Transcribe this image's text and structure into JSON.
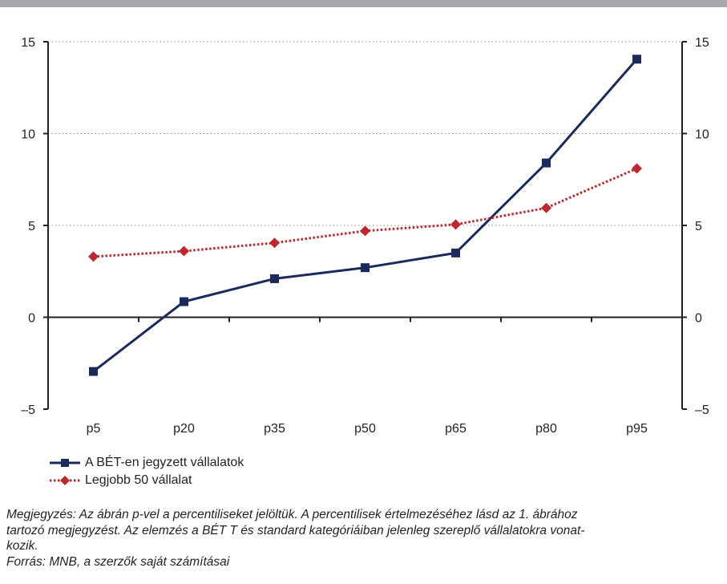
{
  "colors": {
    "series_1": "#1b2a5c",
    "series_2": "#c0272d",
    "top_bar": "#a7a9ac"
  },
  "chart_data": {
    "type": "line",
    "categories": [
      "p5",
      "p20",
      "p35",
      "p50",
      "p65",
      "p80",
      "p95"
    ],
    "ylim": [
      -5,
      15
    ],
    "yticks": [
      -5,
      0,
      5,
      10,
      15
    ],
    "ytick_labels": [
      "–5",
      "0",
      "5",
      "10",
      "15"
    ],
    "secondary_axis": true,
    "grid": "horizontal dotted",
    "legend_placement": "bottom-left",
    "series": [
      {
        "name": "A BÉT-en jegyzett vállalatok",
        "marker": "square",
        "line_style": "solid",
        "color": "#1b2a5c",
        "values": [
          -2.95,
          0.85,
          2.1,
          2.7,
          3.5,
          8.4,
          14.05
        ]
      },
      {
        "name": "Legjobb 50 vállalat",
        "marker": "diamond",
        "line_style": "dotted",
        "color": "#c0272d",
        "values": [
          3.3,
          3.6,
          4.05,
          4.7,
          5.05,
          5.95,
          8.1
        ]
      }
    ]
  },
  "note": {
    "line1": "Megjegyzés: Az ábrán p-vel a percentiliseket jelöltük. A percentilisek értelmezéséhez lásd az 1. ábrához",
    "line2": "tartozó megjegyzést. Az elemzés a BÉT T és standard kategóriáiban jelenleg szereplő vállalatokra vonat-",
    "line3": "kozik.",
    "source": "Forrás: MNB, a szerzők saját számításai"
  }
}
